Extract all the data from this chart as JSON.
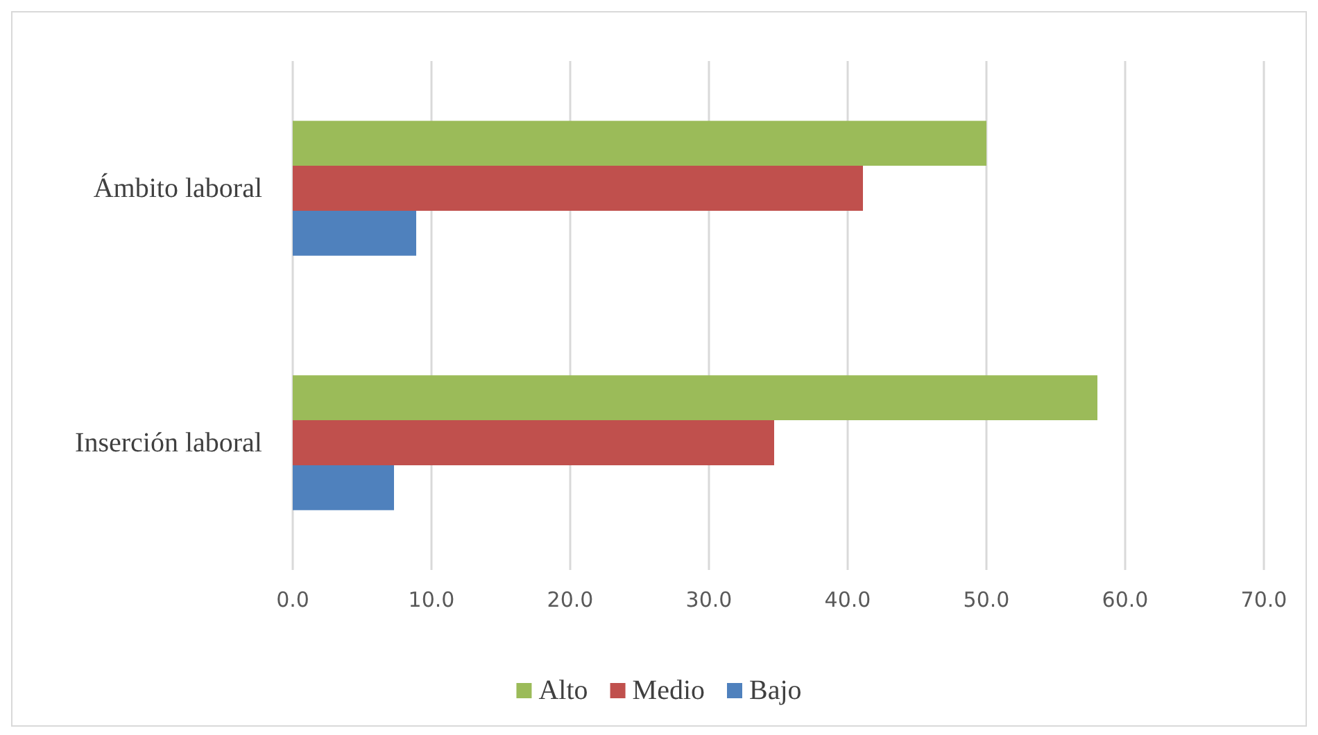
{
  "chart_data": {
    "type": "bar",
    "orientation": "horizontal",
    "categories": [
      "Ámbito laboral",
      "Inserción laboral"
    ],
    "series": [
      {
        "name": "Alto",
        "color": "#9bbb59",
        "values": [
          50.0,
          58.0
        ]
      },
      {
        "name": "Medio",
        "color": "#c0504d",
        "values": [
          41.1,
          34.7
        ]
      },
      {
        "name": "Bajo",
        "color": "#4f81bd",
        "values": [
          8.9,
          7.3
        ]
      }
    ],
    "xlim": [
      0,
      70
    ],
    "xticks": [
      {
        "value": 0,
        "label": "0.0"
      },
      {
        "value": 10,
        "label": "10.0"
      },
      {
        "value": 20,
        "label": "20.0"
      },
      {
        "value": 30,
        "label": "30.0"
      },
      {
        "value": 40,
        "label": "40.0"
      },
      {
        "value": 50,
        "label": "50.0"
      },
      {
        "value": 60,
        "label": "60.0"
      },
      {
        "value": 70,
        "label": "70.0"
      }
    ],
    "grid": "x",
    "legend": "bottom"
  }
}
